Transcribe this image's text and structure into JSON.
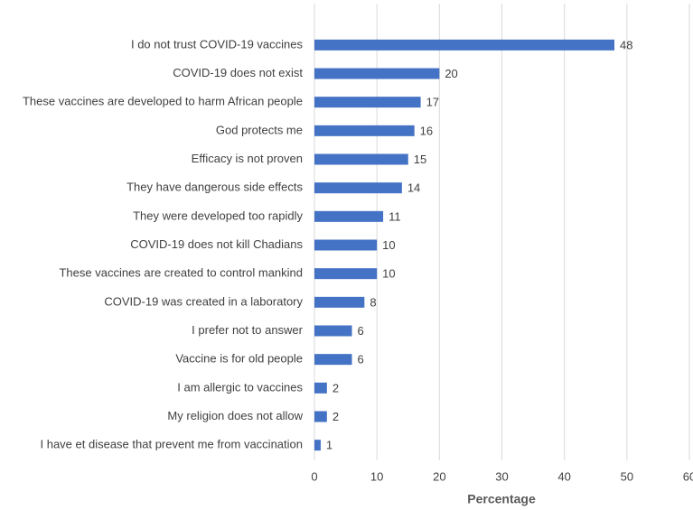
{
  "chart_data": {
    "type": "bar",
    "orientation": "horizontal",
    "xlabel": "Percentage",
    "categories": [
      "I do not trust COVID-19 vaccines",
      "COVID-19 does not exist",
      "These vaccines are developed to harm African people",
      "God protects me",
      "Efficacy is not proven",
      "They have dangerous side effects",
      "They were developed too rapidly",
      "COVID-19 does not kill Chadians",
      "These vaccines are created to control mankind",
      "COVID-19 was created in a laboratory",
      "I prefer not to answer",
      "Vaccine is for old people",
      "I am allergic to vaccines",
      "My religion does not allow",
      "I have et disease that prevent me from vaccination"
    ],
    "values": [
      48,
      20,
      17,
      16,
      15,
      14,
      11,
      10,
      10,
      8,
      6,
      6,
      2,
      2,
      1
    ],
    "color": "#4472c4",
    "xlim": [
      0,
      60
    ],
    "xticks": [
      0,
      10,
      20,
      30,
      40,
      50,
      60
    ],
    "grid": true
  }
}
